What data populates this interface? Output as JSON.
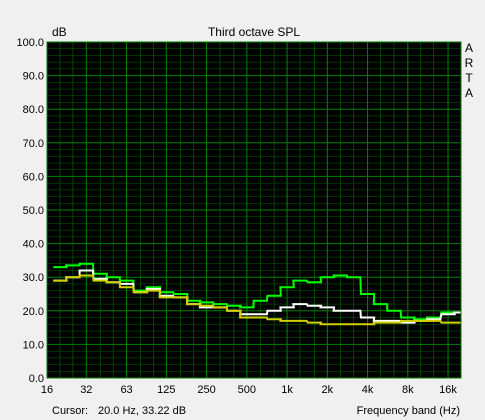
{
  "chart_data": {
    "type": "line",
    "title": "Third octave SPL",
    "ylabel": "dB",
    "xlabel": "Frequency band (Hz)",
    "brand": [
      "A",
      "R",
      "T",
      "A"
    ],
    "cursor": {
      "label": "Cursor:",
      "value": "20.0 Hz, 33.22 dB"
    },
    "xscale": "log",
    "xlim": [
      16,
      20000
    ],
    "ylim": [
      0,
      100
    ],
    "grid": true,
    "background": "#000000",
    "grid_color": "#008000",
    "y_ticks": [
      {
        "v": 0,
        "label": "0.0"
      },
      {
        "v": 10,
        "label": "10.0"
      },
      {
        "v": 20,
        "label": "20.0"
      },
      {
        "v": 30,
        "label": "30.0"
      },
      {
        "v": 40,
        "label": "40.0"
      },
      {
        "v": 50,
        "label": "50.0"
      },
      {
        "v": 60,
        "label": "60.0"
      },
      {
        "v": 70,
        "label": "70.0"
      },
      {
        "v": 80,
        "label": "80.0"
      },
      {
        "v": 90,
        "label": "90.0"
      },
      {
        "v": 100,
        "label": "100.0"
      }
    ],
    "x_ticks": [
      {
        "f": 16,
        "label": "16"
      },
      {
        "f": 31.5,
        "label": "32"
      },
      {
        "f": 63,
        "label": "63"
      },
      {
        "f": 125,
        "label": "125"
      },
      {
        "f": 250,
        "label": "250"
      },
      {
        "f": 500,
        "label": "500"
      },
      {
        "f": 1000,
        "label": "1k"
      },
      {
        "f": 2000,
        "label": "2k"
      },
      {
        "f": 4000,
        "label": "4k"
      },
      {
        "f": 8000,
        "label": "8k"
      },
      {
        "f": 16000,
        "label": "16k"
      }
    ],
    "x": [
      20,
      25,
      31.5,
      40,
      50,
      63,
      80,
      100,
      125,
      160,
      200,
      250,
      315,
      400,
      500,
      630,
      800,
      1000,
      1250,
      1600,
      2000,
      2500,
      3150,
      4000,
      5000,
      6300,
      8000,
      10000,
      12500,
      16000,
      20000
    ],
    "series": [
      {
        "color": "#00ff00",
        "values": [
          33,
          33.5,
          34,
          31,
          30,
          29,
          26,
          27,
          25.5,
          25,
          23,
          22.5,
          22,
          21.5,
          21,
          23,
          24.5,
          27,
          29,
          28.5,
          30,
          30.5,
          30,
          25,
          22,
          20,
          18,
          17.5,
          18,
          19.5,
          19.5
        ]
      },
      {
        "color": "#ffffff",
        "values": [
          29,
          30,
          32,
          29.5,
          28.5,
          28,
          25.5,
          26.5,
          24.5,
          24,
          22,
          21,
          21,
          20,
          19,
          19,
          20,
          21,
          22,
          21.5,
          21,
          20,
          20,
          18,
          17,
          17,
          16.5,
          17,
          17.5,
          19,
          19.5
        ]
      },
      {
        "color": "#d0d000",
        "values": [
          29,
          30,
          30.5,
          29,
          28.5,
          27,
          25.5,
          26,
          24,
          24,
          22,
          21.5,
          21,
          20,
          18,
          18,
          17.5,
          17,
          17,
          16.5,
          16,
          16,
          16,
          16,
          16.5,
          16.5,
          17,
          17,
          17,
          16.5,
          16.5
        ]
      }
    ]
  }
}
